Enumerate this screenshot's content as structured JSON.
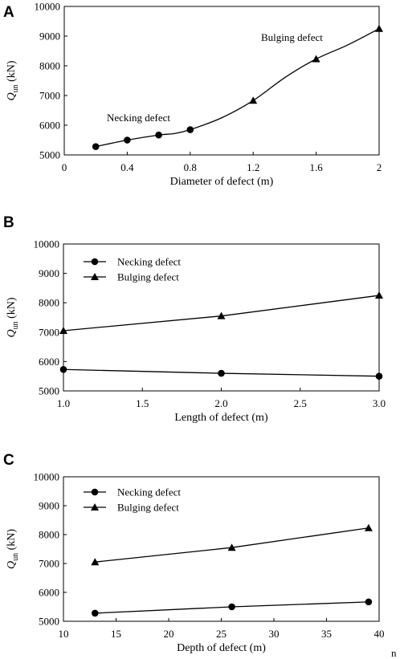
{
  "chart_data": [
    {
      "panel": "A",
      "type": "line",
      "xlabel": "Diameter of defect (m)",
      "ylabel_main": "Q",
      "ylabel_sub": "un",
      "ylabel_unit": "(kN)",
      "xlim": [
        0,
        2
      ],
      "ylim": [
        5000,
        10000
      ],
      "xticks": [
        0,
        0.4,
        0.8,
        1.2,
        1.6,
        2
      ],
      "xtick_labels": [
        "0",
        "0.4",
        "0.8",
        "1.2",
        "1.6",
        "2"
      ],
      "yticks": [
        5000,
        6000,
        7000,
        8000,
        9000,
        10000
      ],
      "ytick_labels": [
        "5000",
        "6000",
        "7000",
        "8000",
        "9000",
        "10000"
      ],
      "curve": [
        [
          0.2,
          5280
        ],
        [
          0.4,
          5500
        ],
        [
          0.6,
          5670
        ],
        [
          0.7,
          5720
        ],
        [
          0.8,
          5850
        ],
        [
          1.0,
          6250
        ],
        [
          1.2,
          6830
        ],
        [
          1.4,
          7600
        ],
        [
          1.6,
          8230
        ],
        [
          1.8,
          8700
        ],
        [
          2.0,
          9250
        ]
      ],
      "series": [
        {
          "name": "Necking defect",
          "marker": "circle",
          "x": [
            0.2,
            0.4,
            0.6,
            0.8
          ],
          "values": [
            5280,
            5500,
            5670,
            5850
          ]
        },
        {
          "name": "Bulging defect",
          "marker": "triangle",
          "x": [
            1.2,
            1.6,
            2.0
          ],
          "values": [
            6830,
            8230,
            9250
          ]
        }
      ],
      "annotations": [
        {
          "text": "Necking defect",
          "at": [
            0.52,
            6150
          ]
        },
        {
          "text": "Bulging defect",
          "at": [
            1.35,
            8980
          ]
        }
      ],
      "legend": "none"
    },
    {
      "panel": "B",
      "type": "line",
      "xlabel": "Length of defect (m)",
      "ylabel_main": "Q",
      "ylabel_sub": "un",
      "ylabel_unit": "(kN)",
      "xlim": [
        1.0,
        3.0
      ],
      "ylim": [
        5000,
        10000
      ],
      "xticks": [
        1.0,
        1.5,
        2.0,
        2.5,
        3.0
      ],
      "xtick_labels": [
        "1.0",
        "1.5",
        "2.0",
        "2.5",
        "3.0"
      ],
      "yticks": [
        5000,
        6000,
        7000,
        8000,
        9000,
        10000
      ],
      "ytick_labels": [
        "5000",
        "6000",
        "7000",
        "8000",
        "9000",
        "10000"
      ],
      "series": [
        {
          "name": "Necking defect",
          "marker": "circle",
          "x": [
            1.0,
            2.0,
            3.0
          ],
          "values": [
            5730,
            5600,
            5500
          ]
        },
        {
          "name": "Bulging defect",
          "marker": "triangle",
          "x": [
            1.0,
            2.0,
            3.0
          ],
          "values": [
            7050,
            7550,
            8250
          ]
        }
      ],
      "annotations": [],
      "legend": "top-left"
    },
    {
      "panel": "C",
      "type": "line",
      "xlabel": "Depth of defect (m)",
      "ylabel_main": "Q",
      "ylabel_sub": "un",
      "ylabel_unit": "(kN)",
      "xlim": [
        10,
        40
      ],
      "ylim": [
        5000,
        10000
      ],
      "xticks": [
        10,
        15,
        20,
        25,
        30,
        35,
        40
      ],
      "xtick_labels": [
        "10",
        "15",
        "20",
        "25",
        "30",
        "35",
        "40"
      ],
      "yticks": [
        5000,
        6000,
        7000,
        8000,
        9000,
        10000
      ],
      "ytick_labels": [
        "5000",
        "6000",
        "7000",
        "8000",
        "9000",
        "10000"
      ],
      "series": [
        {
          "name": "Necking defect",
          "marker": "circle",
          "x": [
            13,
            26,
            39
          ],
          "values": [
            5280,
            5500,
            5670
          ]
        },
        {
          "name": "Bulging defect",
          "marker": "triangle",
          "x": [
            13,
            26,
            39
          ],
          "values": [
            7050,
            7550,
            8230
          ]
        }
      ],
      "annotations": [],
      "legend": "top-left",
      "stray_text": "n"
    }
  ]
}
